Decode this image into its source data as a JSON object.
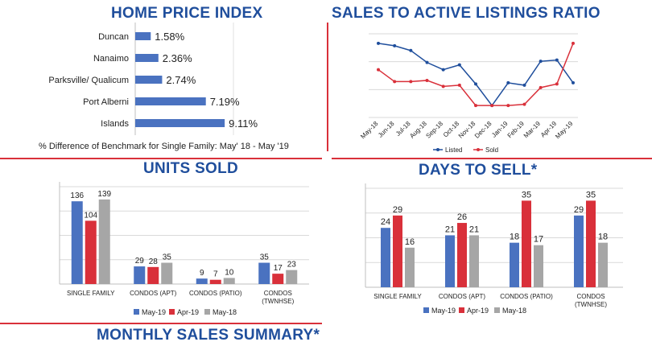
{
  "titles": {
    "hpi": "HOME PRICE INDEX",
    "ratio": "SALES TO ACTIVE LISTINGS RATIO",
    "units": "UNITS SOLD",
    "days": "DAYS TO SELL*",
    "summary": "MONTHLY SALES SUMMARY*"
  },
  "hpi_note": "% Difference of Benchmark for Single Family: May' 18 - May '19",
  "colors": {
    "title": "#1f4e9c",
    "may19": "#4a72c0",
    "apr19": "#d9303a",
    "may18": "#a6a6a6",
    "accent_line": "#d9303a"
  },
  "chart_data": [
    {
      "id": "hpi",
      "type": "bar",
      "orientation": "horizontal",
      "categories": [
        "Duncan",
        "Nanaimo",
        "Parksville/ Qualicum",
        "Port Alberni",
        "Islands"
      ],
      "values": [
        1.58,
        2.36,
        2.74,
        7.19,
        9.11
      ],
      "labels": [
        "1.58%",
        "2.36%",
        "2.74%",
        "7.19%",
        "9.11%"
      ],
      "title": "HOME PRICE INDEX",
      "xlim": [
        0,
        10
      ]
    },
    {
      "id": "ratio",
      "type": "line",
      "title": "SALES TO ACTIVE LISTINGS RATIO",
      "x": [
        "May-18",
        "Jun-18",
        "Jul-18",
        "Aug-18",
        "Sep-18",
        "Oct-18",
        "Nov-18",
        "Dec-18",
        "Jan-19",
        "Feb-19",
        "Mar-19",
        "Apr-19",
        "May-19"
      ],
      "series": [
        {
          "name": "Listed",
          "values": [
            92,
            90,
            86,
            76,
            70,
            74,
            58,
            40,
            59,
            57,
            77,
            78,
            59
          ]
        },
        {
          "name": "Sold",
          "values": [
            70,
            60,
            60,
            61,
            56,
            57,
            40,
            40,
            40,
            41,
            55,
            58,
            92
          ]
        }
      ],
      "ylim": [
        30,
        100
      ],
      "grid": true,
      "legend": "bottom"
    },
    {
      "id": "units",
      "type": "bar",
      "title": "UNITS SOLD",
      "categories": [
        "SINGLE FAMILY",
        "CONDOS (APT)",
        "CONDOS (PATIO)",
        "CONDOS (TWNHSE)"
      ],
      "category_lines": [
        [
          "SINGLE FAMILY"
        ],
        [
          "CONDOS (APT)"
        ],
        [
          "CONDOS (PATIO)"
        ],
        [
          "CONDOS",
          "(TWNHSE)"
        ]
      ],
      "series": [
        {
          "name": "May-19",
          "values": [
            136,
            29,
            9,
            35
          ]
        },
        {
          "name": "Apr-19",
          "values": [
            104,
            28,
            7,
            17
          ]
        },
        {
          "name": "May-18",
          "values": [
            139,
            35,
            10,
            23
          ]
        }
      ],
      "ylim": [
        0,
        160
      ],
      "grid": true,
      "legend": "bottom"
    },
    {
      "id": "days",
      "type": "bar",
      "title": "DAYS TO SELL*",
      "categories": [
        "SINGLE FAMILY",
        "CONDOS (APT)",
        "CONDOS (PATIO)",
        "CONDOS (TWNHSE)"
      ],
      "category_lines": [
        [
          "SINGLE FAMILY"
        ],
        [
          "CONDOS (APT)"
        ],
        [
          "CONDOS (PATIO)"
        ],
        [
          "CONDOS",
          "(TWNHSE)"
        ]
      ],
      "series": [
        {
          "name": "May-19",
          "values": [
            24,
            21,
            18,
            29
          ]
        },
        {
          "name": "Apr-19",
          "values": [
            29,
            26,
            35,
            35
          ]
        },
        {
          "name": "May-18",
          "values": [
            16,
            21,
            17,
            18
          ]
        }
      ],
      "ylim": [
        0,
        40
      ],
      "grid": true,
      "legend": "bottom"
    }
  ]
}
